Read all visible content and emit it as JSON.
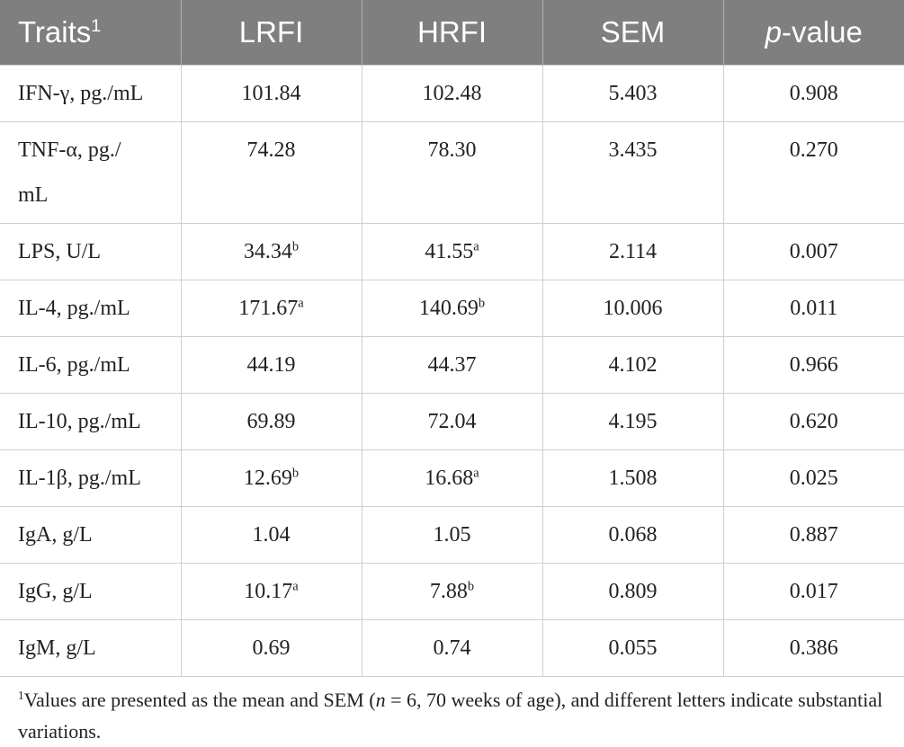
{
  "table": {
    "header": [
      {
        "text": "Traits",
        "sup": "1"
      },
      "LRFI",
      "HRFI",
      "SEM",
      {
        "italic": "p",
        "text": "-value"
      }
    ],
    "rows": [
      [
        "IFN-γ, pg./mL",
        "101.84",
        "102.48",
        "5.403",
        "0.908"
      ],
      [
        "TNF-α, pg./mL",
        "74.28",
        "78.30",
        "3.435",
        "0.270"
      ],
      [
        "LPS, U/L",
        {
          "text": "34.34",
          "sup": "b"
        },
        {
          "text": "41.55",
          "sup": "a"
        },
        "2.114",
        "0.007"
      ],
      [
        "IL-4, pg./mL",
        {
          "text": "171.67",
          "sup": "a"
        },
        {
          "text": "140.69",
          "sup": "b"
        },
        "10.006",
        "0.011"
      ],
      [
        "IL-6, pg./mL",
        "44.19",
        "44.37",
        "4.102",
        "0.966"
      ],
      [
        "IL-10, pg./mL",
        "69.89",
        "72.04",
        "4.195",
        "0.620"
      ],
      [
        "IL-1β, pg./mL",
        {
          "text": "12.69",
          "sup": "b"
        },
        {
          "text": "16.68",
          "sup": "a"
        },
        "1.508",
        "0.025"
      ],
      [
        "IgA, g/L",
        "1.04",
        "1.05",
        "0.068",
        "0.887"
      ],
      [
        "IgG, g/L",
        {
          "text": "10.17",
          "sup": "a"
        },
        {
          "text": "7.88",
          "sup": "b"
        },
        "0.809",
        "0.017"
      ],
      [
        "IgM, g/L",
        "0.69",
        "0.74",
        "0.055",
        "0.386"
      ]
    ]
  },
  "footnote": {
    "sup": "1",
    "text": "Values are presented as the mean and SEM (",
    "italic": "n",
    "text_after": " = 6, 70 weeks of age), and different letters indicate substantial variations."
  }
}
